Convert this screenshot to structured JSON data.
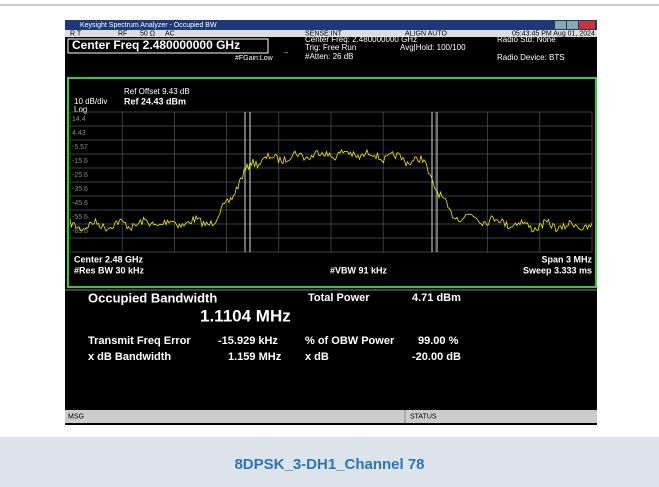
{
  "window": {
    "title": "Keysight Spectrum Analyzer - Occupied BW"
  },
  "status_row": {
    "mode": "R T",
    "rf": "RF",
    "impedance": "50 Ω",
    "coupling": "AC",
    "sense": "SENSE:INT",
    "align": "ALIGN AUTO",
    "datetime": "05:43:45 PM Aug 01, 2024"
  },
  "header": {
    "center_freq": "Center Freq 2.480000000 GHz",
    "fgain": "#FGain:Low",
    "center_freq_small": "Center Freq: 2.480000000 GHz",
    "trig": "Trig: Free Run",
    "atten": "#Atten: 26 dB",
    "avg_hold": "Avg|Hold: 100/100",
    "radio_std": "Radio Std: None",
    "radio_device": "Radio Device: BTS"
  },
  "plot": {
    "ref_offset": "Ref Offset 9.43 dB",
    "scale": "10 dB/div",
    "ref_level": "Ref 24.43 dBm",
    "log": "Log",
    "y_labels": [
      "14.4",
      "4.43",
      "-5.57",
      "-15.6",
      "-25.6",
      "-35.6",
      "-45.6",
      "-55.6",
      "-65.6"
    ],
    "center": "Center 2.48 GHz",
    "res_bw": "#Res BW 30 kHz",
    "vbw": "#VBW 91 kHz",
    "span": "Span 3 MHz",
    "sweep": "Sweep 3.333 ms"
  },
  "results": {
    "obw_label": "Occupied Bandwidth",
    "obw_value": "1.1104 MHz",
    "total_power_label": "Total Power",
    "total_power_value": "4.71 dBm",
    "tx_freq_error_label": "Transmit Freq Error",
    "tx_freq_error_value": "-15.929 kHz",
    "obw_power_label": "% of OBW Power",
    "obw_power_value": "99.00 %",
    "xdb_bw_label": "x dB Bandwidth",
    "xdb_bw_value": "1.159 MHz",
    "xdb_label": "x dB",
    "xdb_value": "-20.00 dB"
  },
  "footer": {
    "msg": "MSG",
    "status": "STATUS"
  },
  "caption": "8DPSK_3-DH1_Channel 78"
}
